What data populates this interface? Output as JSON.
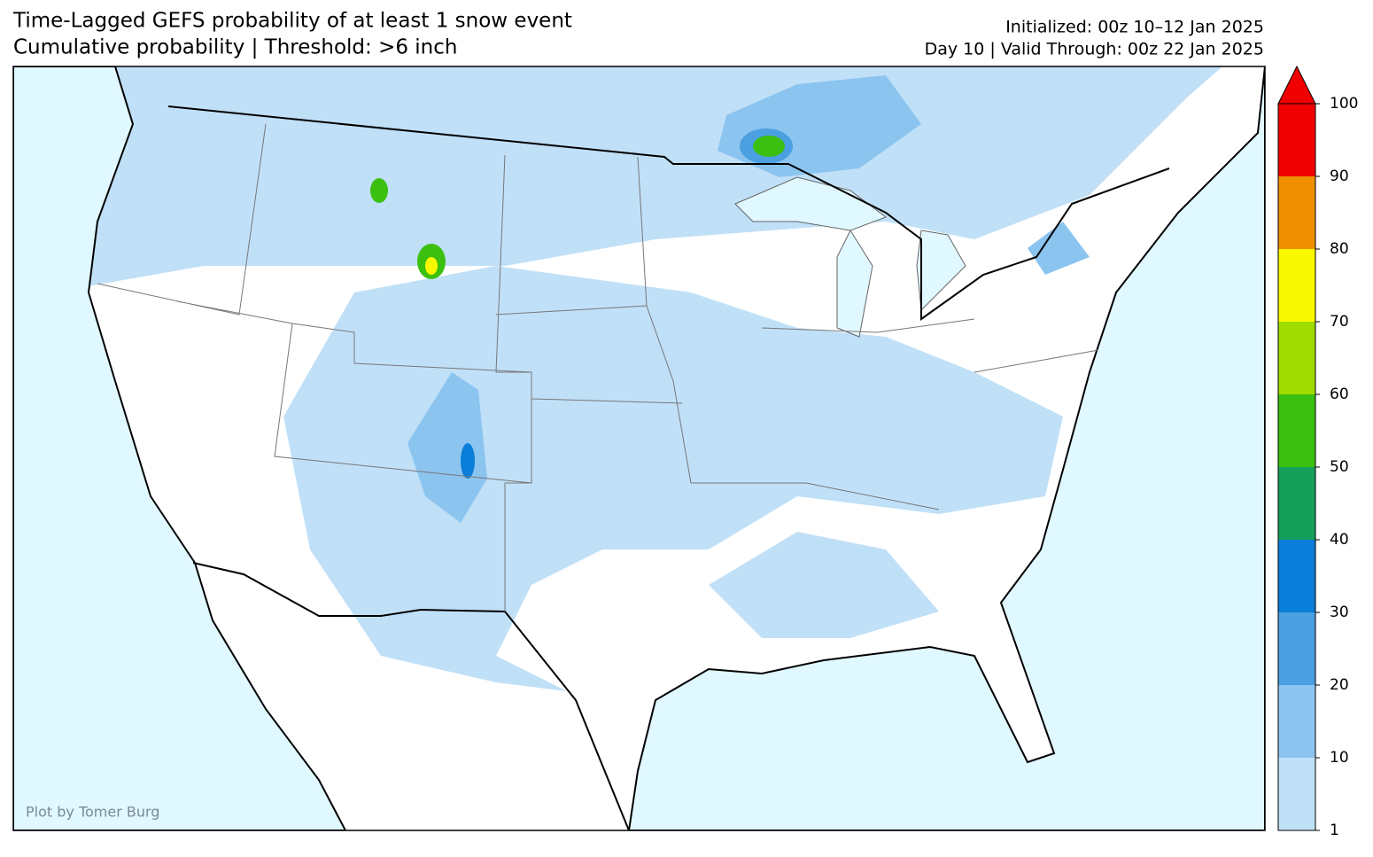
{
  "header": {
    "title_line1": "Time-Lagged GEFS probability of at least 1 snow event",
    "title_line2": "Cumulative probability | Threshold: >6 inch",
    "init": "Initialized: 00z 10–12 Jan 2025",
    "valid": "Day 10 | Valid Through: 00z 22 Jan 2025"
  },
  "colorbar": {
    "ticks": [
      1,
      10,
      20,
      30,
      40,
      50,
      60,
      70,
      80,
      90,
      100
    ],
    "colors": [
      "#c0e0f8",
      "#8cc4f0",
      "#4aa0e0",
      "#0a7ed8",
      "#14a05a",
      "#3cc010",
      "#a0dc00",
      "#f8f800",
      "#f09000",
      "#f00000"
    ],
    "extend_color": "#f00000"
  },
  "credit": "Plot by Tomer Burg"
}
